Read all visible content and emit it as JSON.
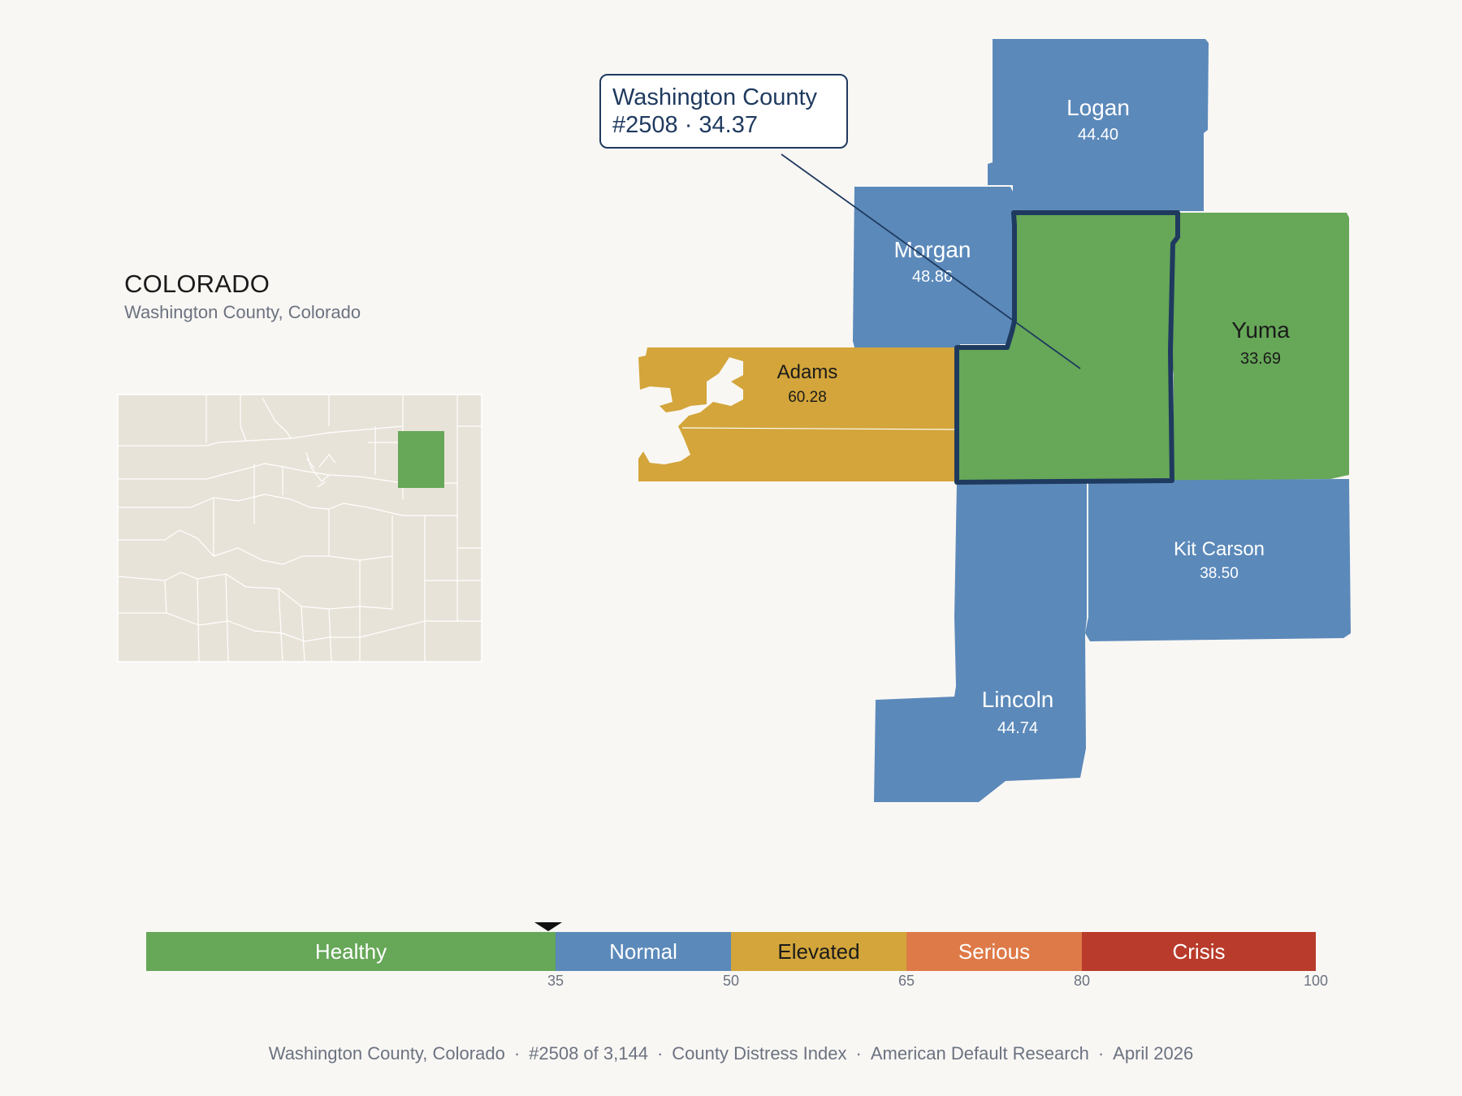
{
  "state": {
    "name": "COLORADO",
    "subtitle": "Washington County, Colorado"
  },
  "callout": {
    "line1": "Washington County",
    "line2": "#2508 · 34.37"
  },
  "colors": {
    "healthy": "#66a758",
    "normal": "#5b89ba",
    "elevated": "#d3a53a",
    "serious": "#de7a48",
    "crisis": "#b93b2b",
    "highlight_border": "#1f3a5f",
    "inset_fill": "#e8e3d8",
    "background": "#f9f7f4"
  },
  "counties": [
    {
      "name": "Logan",
      "score": "44.40",
      "band": "normal"
    },
    {
      "name": "Morgan",
      "score": "48.86",
      "band": "normal"
    },
    {
      "name": "Yuma",
      "score": "33.69",
      "band": "healthy"
    },
    {
      "name": "Adams",
      "score": "60.28",
      "band": "elevated"
    },
    {
      "name": "Kit Carson",
      "score": "38.50",
      "band": "normal"
    },
    {
      "name": "Lincoln",
      "score": "44.74",
      "band": "normal"
    },
    {
      "name": "Washington",
      "score": "34.37",
      "band": "healthy",
      "selected": true
    }
  ],
  "legend": {
    "bands": [
      {
        "label": "Healthy",
        "min": 0,
        "max": 35,
        "color": "#66a758"
      },
      {
        "label": "Normal",
        "min": 35,
        "max": 50,
        "color": "#5b89ba"
      },
      {
        "label": "Elevated",
        "min": 50,
        "max": 65,
        "color": "#d3a53a"
      },
      {
        "label": "Serious",
        "min": 65,
        "max": 80,
        "color": "#de7a48"
      },
      {
        "label": "Crisis",
        "min": 80,
        "max": 100,
        "color": "#b93b2b"
      }
    ],
    "ticks": [
      "35",
      "50",
      "65",
      "80",
      "100"
    ],
    "marker_value": 34.37
  },
  "footer": {
    "location": "Washington County, Colorado",
    "rank": "#2508 of 3,144",
    "index": "County Distress Index",
    "source": "American Default Research",
    "date": "April 2026",
    "separator": "·"
  }
}
